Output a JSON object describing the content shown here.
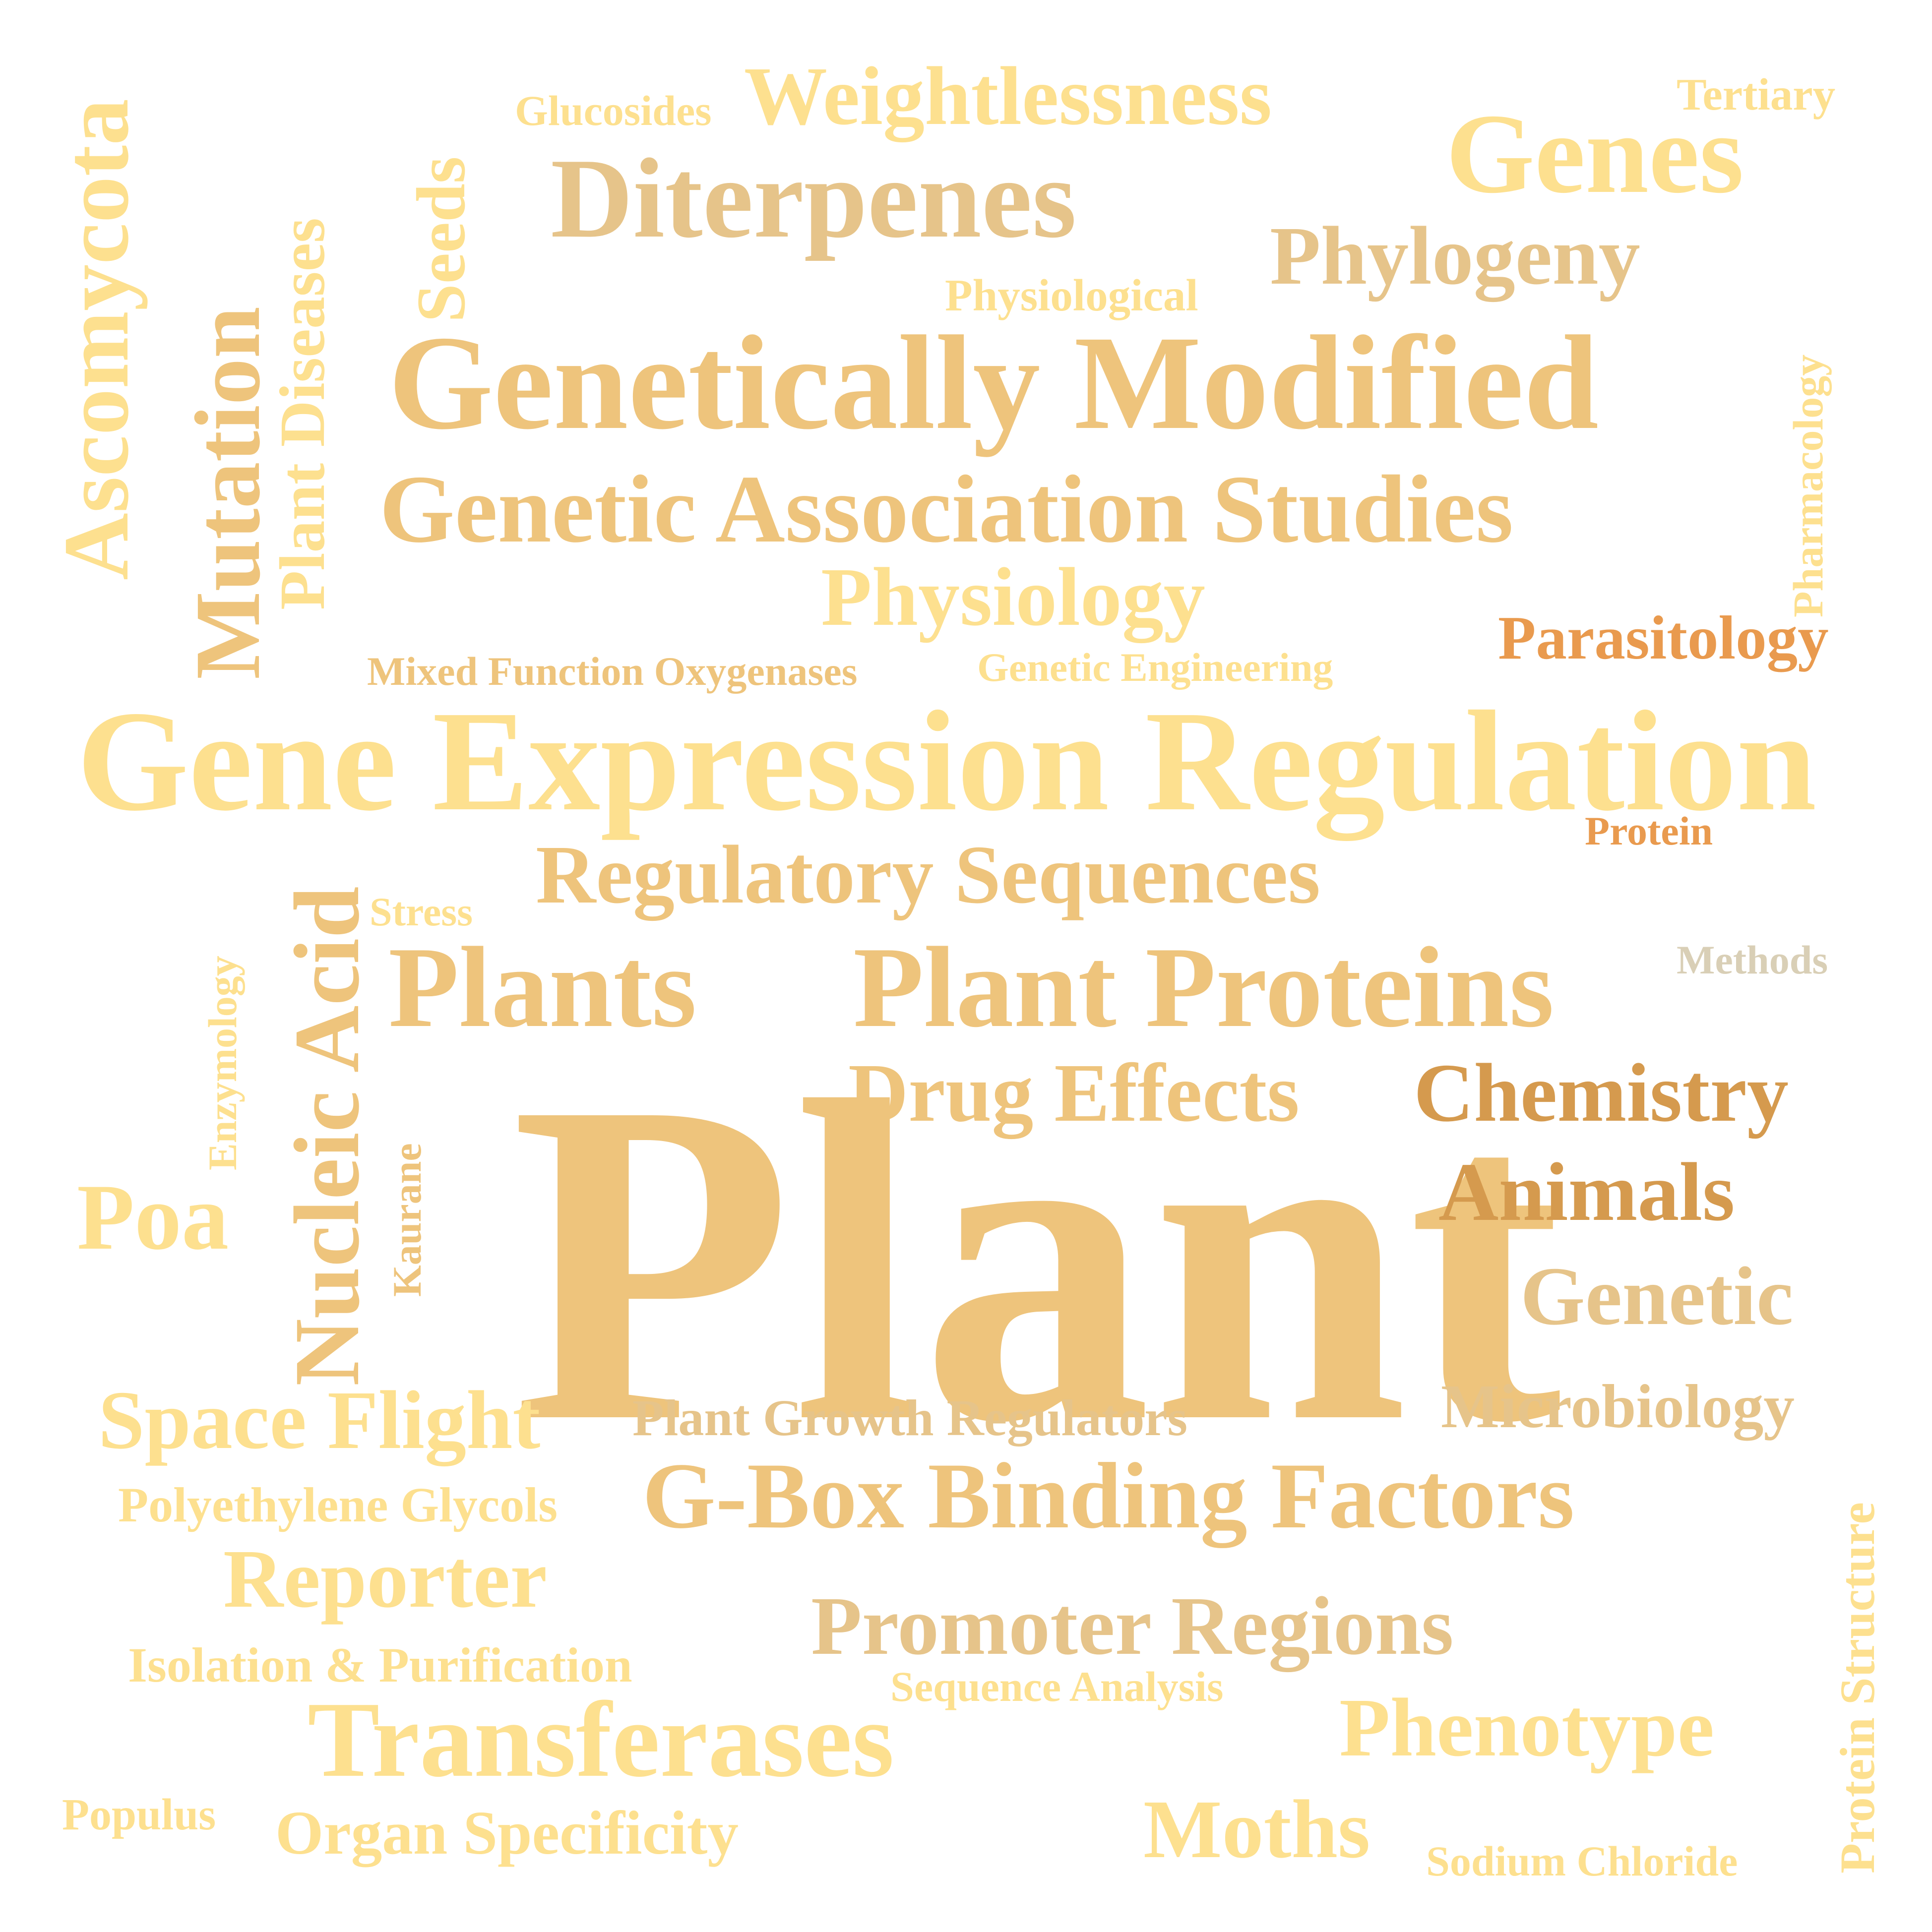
{
  "colors": {
    "pale": "#fde08f",
    "gold": "#eec47c",
    "tan": "#e6c48a",
    "orange": "#e99a4e",
    "grey": "#d9cfb6",
    "deep": "#d59a4e"
  },
  "words": [
    {
      "id": "plant",
      "text": "Plant",
      "weight": 100,
      "color": "gold"
    },
    {
      "id": "gene-expression-regulation",
      "text": "Gene Expression Regulation",
      "weight": 42,
      "color": "pale"
    },
    {
      "id": "genetically-modified",
      "text": "Genetically Modified",
      "weight": 40,
      "color": "gold"
    },
    {
      "id": "plants",
      "text": "Plants",
      "weight": 34,
      "color": "gold"
    },
    {
      "id": "plant-proteins",
      "text": "Plant Proteins",
      "weight": 34,
      "color": "gold"
    },
    {
      "id": "diterpenes",
      "text": "Diterpenes",
      "weight": 33,
      "color": "tan"
    },
    {
      "id": "genes",
      "text": "Genes",
      "weight": 33,
      "color": "pale"
    },
    {
      "id": "transferases",
      "text": "Transferases",
      "weight": 32,
      "color": "pale"
    },
    {
      "id": "genetic-association-studies",
      "text": "Genetic Association Studies",
      "weight": 28,
      "color": "gold"
    },
    {
      "id": "ascomycota",
      "text": "Ascomycota",
      "weight": 27,
      "color": "pale"
    },
    {
      "id": "mutation",
      "text": "Mutation",
      "weight": 27,
      "color": "gold"
    },
    {
      "id": "nucleic-acid",
      "text": "Nucleic Acid",
      "weight": 27,
      "color": "gold"
    },
    {
      "id": "g-box-binding-factors",
      "text": "G-Box Binding Factors",
      "weight": 27,
      "color": "gold"
    },
    {
      "id": "weightlessness",
      "text": "Weightlessness",
      "weight": 24,
      "color": "pale"
    },
    {
      "id": "phylogeny",
      "text": "Phylogeny",
      "weight": 24,
      "color": "tan"
    },
    {
      "id": "physiology",
      "text": "Physiology",
      "weight": 24,
      "color": "pale"
    },
    {
      "id": "regulatory-sequences",
      "text": "Regulatory Sequences",
      "weight": 24,
      "color": "gold"
    },
    {
      "id": "drug-effects",
      "text": "Drug Effects",
      "weight": 24,
      "color": "gold"
    },
    {
      "id": "chemistry",
      "text": "Chemistry",
      "weight": 24,
      "color": "deep"
    },
    {
      "id": "animals",
      "text": "Animals",
      "weight": 24,
      "color": "deep"
    },
    {
      "id": "genetic",
      "text": "Genetic",
      "weight": 24,
      "color": "tan"
    },
    {
      "id": "poa",
      "text": "Poa",
      "weight": 24,
      "color": "pale"
    },
    {
      "id": "space-flight",
      "text": "Space Flight",
      "weight": 24,
      "color": "pale"
    },
    {
      "id": "reporter",
      "text": "Reporter",
      "weight": 24,
      "color": "pale"
    },
    {
      "id": "promoter-regions",
      "text": "Promoter Regions",
      "weight": 24,
      "color": "tan"
    },
    {
      "id": "phenotype",
      "text": "Phenotype",
      "weight": 24,
      "color": "pale"
    },
    {
      "id": "moths",
      "text": "Moths",
      "weight": 24,
      "color": "pale"
    },
    {
      "id": "seeds",
      "text": "Seeds",
      "weight": 20,
      "color": "pale"
    },
    {
      "id": "plant-diseases",
      "text": "Plant Diseases",
      "weight": 18,
      "color": "pale"
    },
    {
      "id": "parasitology",
      "text": "Parasitology",
      "weight": 18,
      "color": "orange"
    },
    {
      "id": "microbiology",
      "text": "Microbiology",
      "weight": 18,
      "color": "tan"
    },
    {
      "id": "organ-specificity",
      "text": "Organ Specificity",
      "weight": 18,
      "color": "pale"
    },
    {
      "id": "plant-growth-regulators",
      "text": "Plant Growth Regulators",
      "weight": 15,
      "color": "tan"
    },
    {
      "id": "polyethylene-glycols",
      "text": "Polyethylene Glycols",
      "weight": 15,
      "color": "pale"
    },
    {
      "id": "isolation-purification",
      "text": "Isolation & Purification",
      "weight": 15,
      "color": "pale"
    },
    {
      "id": "protein-structure",
      "text": "Protein Structure",
      "weight": 15,
      "color": "pale"
    },
    {
      "id": "physiological",
      "text": "Physiological",
      "weight": 13,
      "color": "pale"
    },
    {
      "id": "tertiary",
      "text": "Tertiary",
      "weight": 13,
      "color": "pale"
    },
    {
      "id": "glucosides",
      "text": "Glucosides",
      "weight": 13,
      "color": "pale"
    },
    {
      "id": "pharmacology",
      "text": "Pharmacology",
      "weight": 13,
      "color": "pale"
    },
    {
      "id": "mixed-function-oxygenases",
      "text": "Mixed Function Oxygenases",
      "weight": 12,
      "color": "gold"
    },
    {
      "id": "genetic-engineering",
      "text": "Genetic Engineering",
      "weight": 12,
      "color": "pale"
    },
    {
      "id": "stress",
      "text": "Stress",
      "weight": 12,
      "color": "pale"
    },
    {
      "id": "enzymology",
      "text": "Enzymology",
      "weight": 12,
      "color": "pale"
    },
    {
      "id": "kaurane",
      "text": "Kaurane",
      "weight": 12,
      "color": "gold"
    },
    {
      "id": "protein",
      "text": "Protein",
      "weight": 12,
      "color": "orange"
    },
    {
      "id": "methods",
      "text": "Methods",
      "weight": 12,
      "color": "grey"
    },
    {
      "id": "sequence-analysis",
      "text": "Sequence Analysis",
      "weight": 12,
      "color": "pale"
    },
    {
      "id": "populus",
      "text": "Populus",
      "weight": 12,
      "color": "pale"
    },
    {
      "id": "sodium-chloride",
      "text": "Sodium Chloride",
      "weight": 12,
      "color": "pale"
    }
  ]
}
